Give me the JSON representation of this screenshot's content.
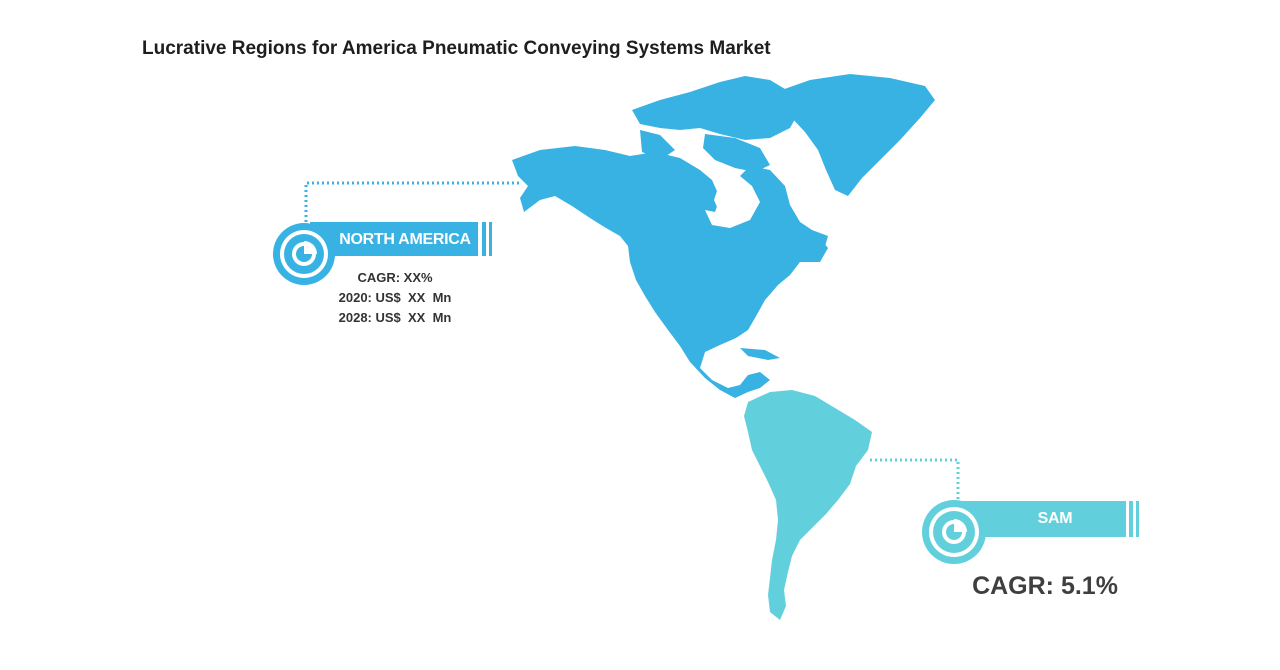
{
  "title": "Lucrative Regions for America Pneumatic Conveying Systems Market",
  "colors": {
    "north_america": "#38b2e3",
    "south_america": "#62d0dc",
    "text_dark": "#333333"
  },
  "regions": {
    "north_america": {
      "label": "NORTH AMERICA",
      "icon": "pie-chart-icon",
      "cagr": "CAGR: XX%",
      "value_2020": "2020: US$  XX  Mn",
      "value_2028": "2028: US$  XX  Mn"
    },
    "sam": {
      "label": "SAM",
      "icon": "pie-chart-icon",
      "cagr": "CAGR: 5.1%"
    }
  }
}
